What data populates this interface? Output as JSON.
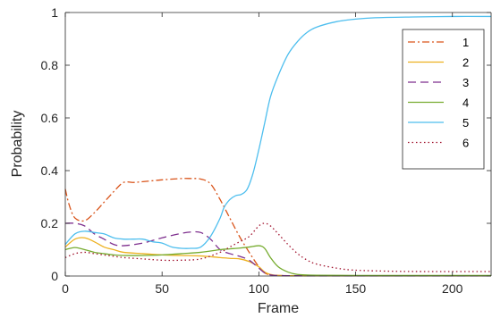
{
  "chart_data": {
    "type": "line",
    "xlabel": "Frame",
    "ylabel": "Probability",
    "xlim": [
      0,
      220
    ],
    "ylim": [
      0,
      1
    ],
    "xticks": [
      0,
      50,
      100,
      150,
      200
    ],
    "yticks": [
      0,
      0.2,
      0.4,
      0.6,
      0.8,
      1
    ],
    "ytick_labels": [
      "0",
      "0.2",
      "0.4",
      "0.6",
      "0.8",
      "1"
    ],
    "grid": false,
    "legend_position": "top-right",
    "series": [
      {
        "name": "1",
        "color": "#D95319",
        "dash": "dash-dot",
        "x": [
          0,
          2,
          5,
          10,
          15,
          20,
          25,
          30,
          35,
          40,
          50,
          60,
          65,
          70,
          75,
          80,
          85,
          90,
          95,
          100,
          103,
          106,
          110,
          120,
          130,
          140,
          150,
          170,
          190,
          220
        ],
        "y": [
          0.33,
          0.27,
          0.22,
          0.21,
          0.24,
          0.28,
          0.32,
          0.355,
          0.355,
          0.358,
          0.365,
          0.37,
          0.37,
          0.368,
          0.35,
          0.29,
          0.22,
          0.15,
          0.09,
          0.035,
          0.012,
          0.004,
          0.002,
          0.001,
          0.001,
          0.001,
          0.001,
          0.001,
          0.001,
          0.001
        ]
      },
      {
        "name": "2",
        "color": "#EDB120",
        "dash": "solid",
        "x": [
          0,
          5,
          10,
          15,
          20,
          25,
          30,
          40,
          50,
          60,
          70,
          80,
          85,
          90,
          95,
          100,
          103,
          106,
          110,
          120,
          150,
          190,
          220
        ],
        "y": [
          0.11,
          0.14,
          0.145,
          0.13,
          0.11,
          0.1,
          0.09,
          0.085,
          0.08,
          0.078,
          0.076,
          0.07,
          0.067,
          0.065,
          0.055,
          0.035,
          0.015,
          0.006,
          0.002,
          0.001,
          0.001,
          0.001,
          0.001
        ]
      },
      {
        "name": "3",
        "color": "#7E2F8E",
        "dash": "dash",
        "x": [
          0,
          5,
          10,
          15,
          20,
          25,
          30,
          40,
          50,
          60,
          65,
          70,
          75,
          80,
          85,
          90,
          95,
          100,
          103,
          106,
          110,
          120,
          150,
          190,
          220
        ],
        "y": [
          0.2,
          0.2,
          0.19,
          0.16,
          0.14,
          0.12,
          0.115,
          0.125,
          0.145,
          0.162,
          0.167,
          0.165,
          0.14,
          0.1,
          0.085,
          0.075,
          0.06,
          0.03,
          0.012,
          0.004,
          0.002,
          0.001,
          0.001,
          0.001,
          0.001
        ]
      },
      {
        "name": "4",
        "color": "#77AC30",
        "dash": "solid",
        "x": [
          0,
          5,
          10,
          15,
          20,
          25,
          30,
          40,
          50,
          60,
          70,
          80,
          85,
          90,
          95,
          100,
          103,
          106,
          110,
          115,
          120,
          130,
          150,
          190,
          220
        ],
        "y": [
          0.1,
          0.108,
          0.1,
          0.09,
          0.085,
          0.08,
          0.078,
          0.078,
          0.08,
          0.085,
          0.09,
          0.1,
          0.103,
          0.106,
          0.11,
          0.115,
          0.105,
          0.07,
          0.035,
          0.015,
          0.006,
          0.003,
          0.002,
          0.002,
          0.002
        ]
      },
      {
        "name": "5",
        "color": "#4DBEEE",
        "dash": "solid",
        "x": [
          0,
          5,
          10,
          15,
          20,
          25,
          30,
          35,
          40,
          45,
          50,
          55,
          60,
          65,
          70,
          75,
          80,
          82,
          85,
          88,
          91,
          94,
          97,
          100,
          103,
          106,
          110,
          115,
          120,
          125,
          130,
          140,
          150,
          160,
          180,
          200,
          220
        ],
        "y": [
          0.12,
          0.16,
          0.17,
          0.165,
          0.16,
          0.145,
          0.14,
          0.14,
          0.14,
          0.13,
          0.125,
          0.11,
          0.105,
          0.105,
          0.11,
          0.15,
          0.22,
          0.26,
          0.29,
          0.305,
          0.31,
          0.33,
          0.39,
          0.48,
          0.58,
          0.68,
          0.76,
          0.84,
          0.89,
          0.925,
          0.945,
          0.965,
          0.975,
          0.98,
          0.983,
          0.985,
          0.985
        ]
      },
      {
        "name": "6",
        "color": "#A2142F",
        "dash": "dot",
        "x": [
          0,
          5,
          10,
          15,
          20,
          25,
          30,
          40,
          50,
          60,
          70,
          80,
          85,
          90,
          95,
          100,
          103,
          106,
          110,
          115,
          120,
          125,
          130,
          140,
          150,
          170,
          190,
          220
        ],
        "y": [
          0.07,
          0.085,
          0.09,
          0.085,
          0.08,
          0.075,
          0.07,
          0.065,
          0.06,
          0.06,
          0.065,
          0.09,
          0.11,
          0.13,
          0.15,
          0.19,
          0.2,
          0.19,
          0.16,
          0.12,
          0.085,
          0.06,
          0.045,
          0.03,
          0.022,
          0.018,
          0.017,
          0.017
        ]
      }
    ]
  }
}
